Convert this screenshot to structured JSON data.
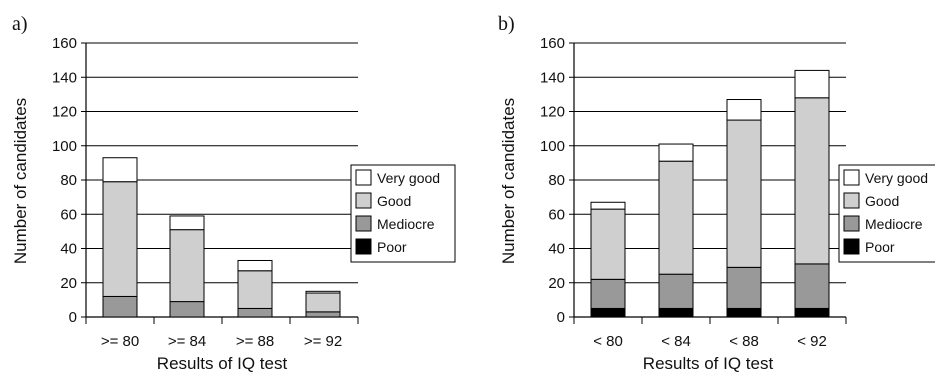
{
  "figure": {
    "panels": [
      {
        "tag": "a)",
        "ylabel": "Number of candidates",
        "xlabel": "Results of IQ test"
      },
      {
        "tag": "b)",
        "ylabel": "Number of candidates",
        "xlabel": "Results of IQ test"
      }
    ],
    "legend": [
      "Very good",
      "Good",
      "Mediocre",
      "Poor"
    ],
    "colors": {
      "Very good": "#ffffff",
      "Good": "#cfcfcf",
      "Mediocre": "#999999",
      "Poor": "#000000"
    }
  },
  "chart_data": [
    {
      "type": "bar",
      "stacked": true,
      "categories": [
        ">= 80",
        ">= 84",
        ">= 88",
        ">= 92"
      ],
      "series": [
        {
          "name": "Poor",
          "values": [
            0,
            0,
            0,
            0
          ]
        },
        {
          "name": "Mediocre",
          "values": [
            12,
            9,
            5,
            3
          ]
        },
        {
          "name": "Good",
          "values": [
            67,
            42,
            22,
            11
          ]
        },
        {
          "name": "Very good",
          "values": [
            14,
            8,
            6,
            1
          ]
        }
      ],
      "xlabel": "Results of IQ test",
      "ylabel": "Number of candidates",
      "ylim": [
        0,
        160
      ],
      "yticks": [
        0,
        20,
        40,
        60,
        80,
        100,
        120,
        140,
        160
      ],
      "grid": true,
      "legend": "right"
    },
    {
      "type": "bar",
      "stacked": true,
      "categories": [
        "< 80",
        "< 84",
        "< 88",
        "< 92"
      ],
      "series": [
        {
          "name": "Poor",
          "values": [
            5,
            5,
            5,
            5
          ]
        },
        {
          "name": "Mediocre",
          "values": [
            17,
            20,
            24,
            26
          ]
        },
        {
          "name": "Good",
          "values": [
            41,
            66,
            86,
            97
          ]
        },
        {
          "name": "Very good",
          "values": [
            4,
            10,
            12,
            16
          ]
        }
      ],
      "xlabel": "Results of IQ test",
      "ylabel": "Number of candidates",
      "ylim": [
        0,
        160
      ],
      "yticks": [
        0,
        20,
        40,
        60,
        80,
        100,
        120,
        140,
        160
      ],
      "grid": true,
      "legend": "right"
    }
  ]
}
